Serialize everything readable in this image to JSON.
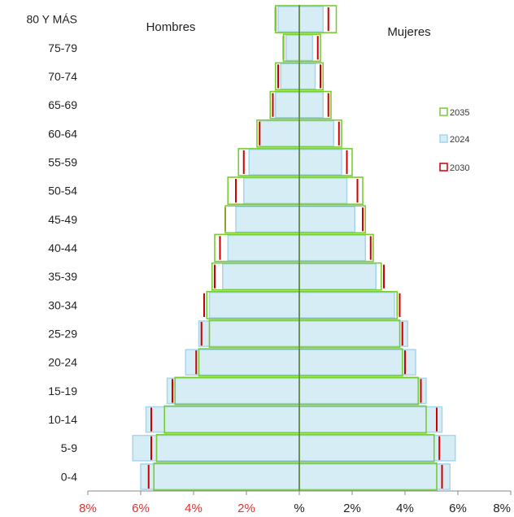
{
  "chart_data": {
    "type": "bar",
    "orientation": "horizontal-pyramid",
    "categories": [
      "0-4",
      "5-9",
      "10-14",
      "15-19",
      "20-24",
      "25-29",
      "30-34",
      "35-39",
      "40-44",
      "45-49",
      "50-54",
      "55-59",
      "60-64",
      "65-69",
      "70-74",
      "75-79",
      "80 Y MÁS"
    ],
    "left_label": "Hombres",
    "right_label": "Mujeres",
    "xlim": [
      -8,
      8
    ],
    "x_ticks": [
      {
        "value": -8,
        "label": "8%"
      },
      {
        "value": -6,
        "label": "6%"
      },
      {
        "value": -4,
        "label": "4%"
      },
      {
        "value": -2,
        "label": "2%"
      },
      {
        "value": 0,
        "label": "%"
      },
      {
        "value": 2,
        "label": "2%"
      },
      {
        "value": 4,
        "label": "4%"
      },
      {
        "value": 6,
        "label": "6%"
      },
      {
        "value": 8,
        "label": "8%"
      }
    ],
    "series": [
      {
        "name": "2024",
        "color": "#a6d5ee",
        "fill": "#d7edf6",
        "men": [
          6.0,
          6.3,
          5.8,
          5.0,
          4.3,
          3.8,
          3.4,
          2.9,
          2.7,
          2.4,
          2.1,
          1.9,
          1.5,
          0.9,
          0.7,
          0.5,
          0.8
        ],
        "women": [
          5.7,
          5.9,
          5.4,
          4.8,
          4.4,
          4.1,
          3.6,
          2.9,
          2.5,
          2.1,
          1.8,
          1.6,
          1.3,
          0.9,
          0.6,
          0.5,
          0.9
        ]
      },
      {
        "name": "2030",
        "color": "#cc0000",
        "men": [
          5.7,
          5.6,
          5.6,
          4.8,
          3.9,
          3.7,
          3.6,
          3.2,
          3.0,
          2.8,
          2.4,
          2.1,
          1.5,
          1.0,
          0.8,
          0.6,
          0.9
        ],
        "women": [
          5.4,
          5.3,
          5.2,
          4.6,
          4.0,
          3.9,
          3.8,
          3.2,
          2.7,
          2.4,
          2.2,
          1.8,
          1.5,
          1.1,
          0.8,
          0.7,
          1.1
        ]
      },
      {
        "name": "2035",
        "color": "#77cc33",
        "men": [
          5.5,
          5.4,
          5.1,
          4.7,
          3.8,
          3.4,
          3.5,
          3.3,
          3.2,
          2.8,
          2.7,
          2.3,
          1.6,
          1.1,
          0.9,
          0.6,
          0.9
        ],
        "women": [
          5.2,
          5.1,
          4.8,
          4.5,
          3.9,
          3.8,
          3.7,
          3.1,
          2.8,
          2.5,
          2.4,
          2.0,
          1.6,
          1.2,
          0.9,
          0.8,
          1.4
        ]
      }
    ],
    "legend": {
      "placement": "right",
      "entries": [
        {
          "name": "2035",
          "color": "#77cc33"
        },
        {
          "name": "2024",
          "color": "#a6d5ee"
        },
        {
          "name": "2030",
          "color": "#cc0000"
        }
      ]
    },
    "grid": false
  }
}
